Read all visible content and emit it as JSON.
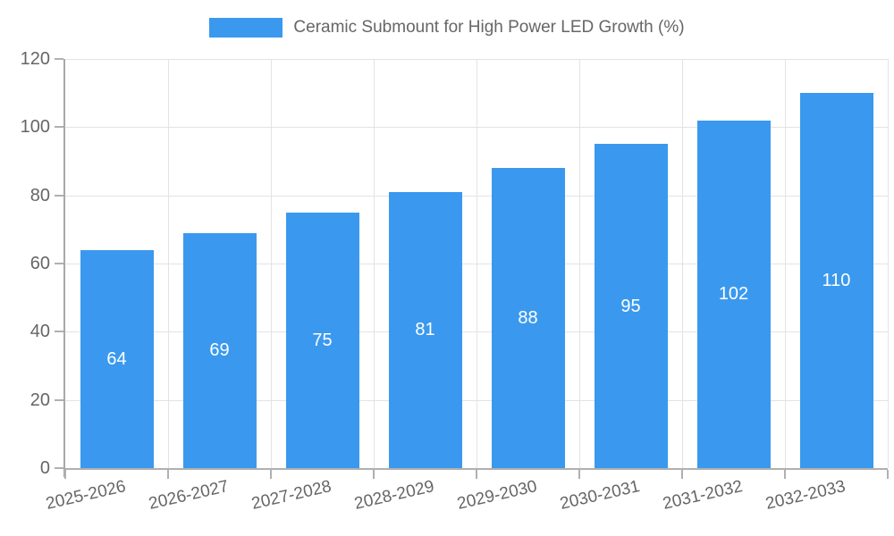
{
  "legend": {
    "label": "Ceramic Submount for High Power LED Growth (%)"
  },
  "chart_data": {
    "type": "bar",
    "title": "Ceramic Submount for High Power LED Growth (%)",
    "categories": [
      "2025-2026",
      "2026-2027",
      "2027-2028",
      "2028-2029",
      "2029-2030",
      "2030-2031",
      "2031-2032",
      "2032-2033"
    ],
    "values": [
      64,
      69,
      75,
      81,
      88,
      95,
      102,
      110
    ],
    "xlabel": "",
    "ylabel": "",
    "ylim": [
      0,
      120
    ],
    "ytick_step": 20,
    "grid": true,
    "legend_position": "top-center",
    "colors": {
      "bar": "#3a99ee",
      "value_label": "#ffffff",
      "axis_text": "#666666",
      "gridline": "#e3e3e3",
      "axis_line": "#aaaaaa"
    }
  }
}
